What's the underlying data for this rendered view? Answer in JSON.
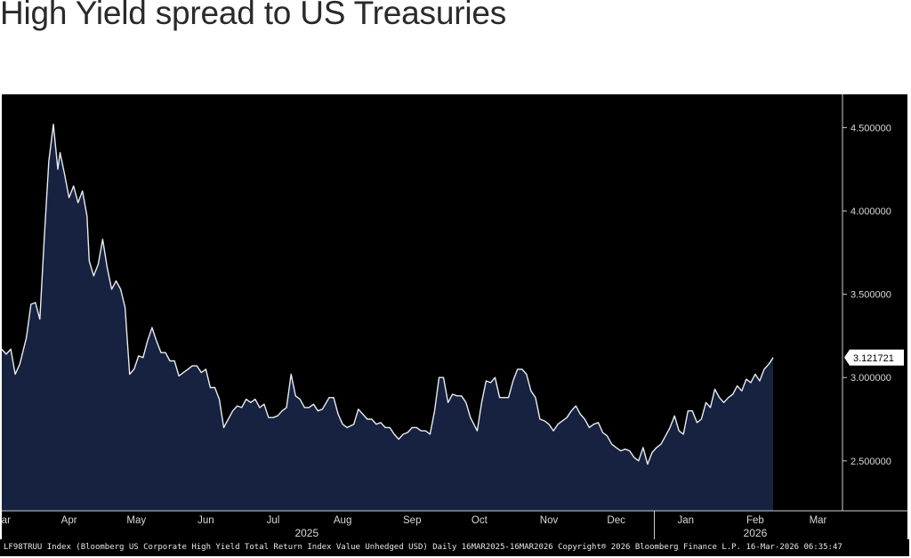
{
  "title": "High Yield spread to US Treasuries",
  "footer_text": "LF98TRUU Index (Bloomberg US Corporate High Yield Total Return Index Value Unhedged USD) Daily 16MAR2025-16MAR2026  Copyright® 2026 Bloomberg Finance L.P.  16-Mar-2026 06:35:47",
  "colors": {
    "background": "#000000",
    "area_fill": "#16223f",
    "line": "#e8ecf2",
    "text": "#d8d8d8"
  },
  "chart_data": {
    "type": "area",
    "title": "High Yield spread to US Treasuries",
    "x_range": [
      "2025-03-16",
      "2026-03-16"
    ],
    "ylim": [
      2.2,
      4.7
    ],
    "y_ticks": [
      2.5,
      3.0,
      3.5,
      4.0,
      4.5
    ],
    "y_tick_labels": [
      "2.500000",
      "3.000000",
      "3.500000",
      "4.000000",
      "4.500000"
    ],
    "x_ticks": [
      {
        "label": "Mar",
        "date": "2025-03-16"
      },
      {
        "label": "Apr",
        "date": "2025-04-15"
      },
      {
        "label": "May",
        "date": "2025-05-15"
      },
      {
        "label": "Jun",
        "date": "2025-06-15"
      },
      {
        "label": "Jul",
        "date": "2025-07-15"
      },
      {
        "label": "Aug",
        "date": "2025-08-15"
      },
      {
        "label": "Sep",
        "date": "2025-09-15"
      },
      {
        "label": "Oct",
        "date": "2025-10-15"
      },
      {
        "label": "Nov",
        "date": "2025-11-15"
      },
      {
        "label": "Dec",
        "date": "2025-12-15"
      },
      {
        "label": "Jan",
        "date": "2026-01-15"
      },
      {
        "label": "Feb",
        "date": "2026-02-15"
      },
      {
        "label": "Mar",
        "date": "2026-03-15"
      }
    ],
    "year_labels": [
      {
        "label": "2025",
        "date": "2025-07-30"
      },
      {
        "label": "2026",
        "date": "2026-02-15"
      }
    ],
    "year_divider_date": "2026-01-01",
    "last_value_label": "3.121721",
    "grid": false,
    "legend": "none",
    "series": [
      {
        "values": [
          [
            "2025-03-16",
            3.17
          ],
          [
            "2025-03-18",
            3.14
          ],
          [
            "2025-03-20",
            3.17
          ],
          [
            "2025-03-22",
            3.02
          ],
          [
            "2025-03-24",
            3.08
          ],
          [
            "2025-03-27",
            3.24
          ],
          [
            "2025-03-29",
            3.44
          ],
          [
            "2025-03-31",
            3.45
          ],
          [
            "2025-04-02",
            3.35
          ],
          [
            "2025-04-04",
            3.85
          ],
          [
            "2025-04-06",
            4.3
          ],
          [
            "2025-04-08",
            4.52
          ],
          [
            "2025-04-10",
            4.25
          ],
          [
            "2025-04-11",
            4.35
          ],
          [
            "2025-04-13",
            4.22
          ],
          [
            "2025-04-15",
            4.08
          ],
          [
            "2025-04-17",
            4.15
          ],
          [
            "2025-04-19",
            4.05
          ],
          [
            "2025-04-21",
            4.12
          ],
          [
            "2025-04-23",
            3.97
          ],
          [
            "2025-04-24",
            3.7
          ],
          [
            "2025-04-26",
            3.61
          ],
          [
            "2025-04-28",
            3.68
          ],
          [
            "2025-04-30",
            3.83
          ],
          [
            "2025-05-02",
            3.66
          ],
          [
            "2025-05-04",
            3.53
          ],
          [
            "2025-05-06",
            3.58
          ],
          [
            "2025-05-08",
            3.53
          ],
          [
            "2025-05-10",
            3.42
          ],
          [
            "2025-05-12",
            3.02
          ],
          [
            "2025-05-14",
            3.05
          ],
          [
            "2025-05-16",
            3.13
          ],
          [
            "2025-05-18",
            3.12
          ],
          [
            "2025-05-20",
            3.22
          ],
          [
            "2025-05-22",
            3.3
          ],
          [
            "2025-05-24",
            3.22
          ],
          [
            "2025-05-26",
            3.15
          ],
          [
            "2025-05-28",
            3.15
          ],
          [
            "2025-05-30",
            3.1
          ],
          [
            "2025-06-01",
            3.1
          ],
          [
            "2025-06-03",
            3.01
          ],
          [
            "2025-06-05",
            3.03
          ],
          [
            "2025-06-07",
            3.05
          ],
          [
            "2025-06-09",
            3.07
          ],
          [
            "2025-06-11",
            3.07
          ],
          [
            "2025-06-13",
            3.03
          ],
          [
            "2025-06-15",
            3.05
          ],
          [
            "2025-06-17",
            2.94
          ],
          [
            "2025-06-19",
            2.94
          ],
          [
            "2025-06-21",
            2.87
          ],
          [
            "2025-06-23",
            2.7
          ],
          [
            "2025-06-25",
            2.75
          ],
          [
            "2025-06-27",
            2.8
          ],
          [
            "2025-06-29",
            2.83
          ],
          [
            "2025-07-01",
            2.82
          ],
          [
            "2025-07-03",
            2.87
          ],
          [
            "2025-07-05",
            2.85
          ],
          [
            "2025-07-07",
            2.87
          ],
          [
            "2025-07-09",
            2.82
          ],
          [
            "2025-07-11",
            2.84
          ],
          [
            "2025-07-13",
            2.76
          ],
          [
            "2025-07-15",
            2.76
          ],
          [
            "2025-07-17",
            2.77
          ],
          [
            "2025-07-19",
            2.8
          ],
          [
            "2025-07-21",
            2.82
          ],
          [
            "2025-07-23",
            3.02
          ],
          [
            "2025-07-25",
            2.89
          ],
          [
            "2025-07-27",
            2.87
          ],
          [
            "2025-07-29",
            2.82
          ],
          [
            "2025-07-31",
            2.82
          ],
          [
            "2025-08-02",
            2.84
          ],
          [
            "2025-08-04",
            2.8
          ],
          [
            "2025-08-06",
            2.81
          ],
          [
            "2025-08-09",
            2.88
          ],
          [
            "2025-08-11",
            2.88
          ],
          [
            "2025-08-13",
            2.78
          ],
          [
            "2025-08-15",
            2.72
          ],
          [
            "2025-08-17",
            2.7
          ],
          [
            "2025-08-20",
            2.72
          ],
          [
            "2025-08-22",
            2.81
          ],
          [
            "2025-08-24",
            2.78
          ],
          [
            "2025-08-26",
            2.75
          ],
          [
            "2025-08-28",
            2.75
          ],
          [
            "2025-08-30",
            2.72
          ],
          [
            "2025-09-01",
            2.73
          ],
          [
            "2025-09-03",
            2.7
          ],
          [
            "2025-09-05",
            2.7
          ],
          [
            "2025-09-07",
            2.66
          ],
          [
            "2025-09-09",
            2.63
          ],
          [
            "2025-09-11",
            2.66
          ],
          [
            "2025-09-13",
            2.67
          ],
          [
            "2025-09-15",
            2.7
          ],
          [
            "2025-09-17",
            2.7
          ],
          [
            "2025-09-19",
            2.68
          ],
          [
            "2025-09-21",
            2.68
          ],
          [
            "2025-09-23",
            2.66
          ],
          [
            "2025-09-25",
            2.8
          ],
          [
            "2025-09-27",
            3.0
          ],
          [
            "2025-09-29",
            3.0
          ],
          [
            "2025-10-01",
            2.85
          ],
          [
            "2025-10-03",
            2.9
          ],
          [
            "2025-10-05",
            2.89
          ],
          [
            "2025-10-07",
            2.89
          ],
          [
            "2025-10-09",
            2.85
          ],
          [
            "2025-10-11",
            2.76
          ],
          [
            "2025-10-14",
            2.68
          ],
          [
            "2025-10-16",
            2.85
          ],
          [
            "2025-10-18",
            2.98
          ],
          [
            "2025-10-20",
            2.97
          ],
          [
            "2025-10-22",
            3.0
          ],
          [
            "2025-10-24",
            2.88
          ],
          [
            "2025-10-26",
            2.88
          ],
          [
            "2025-10-28",
            2.88
          ],
          [
            "2025-10-30",
            2.98
          ],
          [
            "2025-11-01",
            3.05
          ],
          [
            "2025-11-03",
            3.05
          ],
          [
            "2025-11-05",
            3.02
          ],
          [
            "2025-11-07",
            2.92
          ],
          [
            "2025-11-09",
            2.88
          ],
          [
            "2025-11-11",
            2.75
          ],
          [
            "2025-11-13",
            2.74
          ],
          [
            "2025-11-15",
            2.72
          ],
          [
            "2025-11-17",
            2.68
          ],
          [
            "2025-11-19",
            2.72
          ],
          [
            "2025-11-21",
            2.74
          ],
          [
            "2025-11-23",
            2.76
          ],
          [
            "2025-11-25",
            2.8
          ],
          [
            "2025-11-27",
            2.83
          ],
          [
            "2025-11-29",
            2.78
          ],
          [
            "2025-12-01",
            2.75
          ],
          [
            "2025-12-03",
            2.7
          ],
          [
            "2025-12-05",
            2.72
          ],
          [
            "2025-12-07",
            2.73
          ],
          [
            "2025-12-09",
            2.67
          ],
          [
            "2025-12-11",
            2.65
          ],
          [
            "2025-12-13",
            2.6
          ],
          [
            "2025-12-15",
            2.58
          ],
          [
            "2025-12-17",
            2.56
          ],
          [
            "2025-12-19",
            2.57
          ],
          [
            "2025-12-21",
            2.56
          ],
          [
            "2025-12-23",
            2.52
          ],
          [
            "2025-12-25",
            2.5
          ],
          [
            "2025-12-27",
            2.58
          ],
          [
            "2025-12-29",
            2.48
          ],
          [
            "2025-12-31",
            2.55
          ],
          [
            "2026-01-02",
            2.58
          ],
          [
            "2026-01-04",
            2.6
          ],
          [
            "2026-01-06",
            2.65
          ],
          [
            "2026-01-08",
            2.7
          ],
          [
            "2026-01-10",
            2.77
          ],
          [
            "2026-01-12",
            2.68
          ],
          [
            "2026-01-14",
            2.66
          ],
          [
            "2026-01-16",
            2.8
          ],
          [
            "2026-01-18",
            2.8
          ],
          [
            "2026-01-20",
            2.73
          ],
          [
            "2026-01-22",
            2.75
          ],
          [
            "2026-01-24",
            2.85
          ],
          [
            "2026-01-26",
            2.82
          ],
          [
            "2026-01-28",
            2.93
          ],
          [
            "2026-01-30",
            2.88
          ],
          [
            "2026-02-01",
            2.85
          ],
          [
            "2026-02-03",
            2.88
          ],
          [
            "2026-02-05",
            2.9
          ],
          [
            "2026-02-07",
            2.95
          ],
          [
            "2026-02-09",
            2.92
          ],
          [
            "2026-02-11",
            2.99
          ],
          [
            "2026-02-13",
            2.97
          ],
          [
            "2026-02-15",
            3.02
          ],
          [
            "2026-02-17",
            2.98
          ],
          [
            "2026-02-19",
            3.05
          ],
          [
            "2026-02-21",
            3.08
          ],
          [
            "2026-02-23",
            3.12
          ]
        ]
      }
    ]
  }
}
